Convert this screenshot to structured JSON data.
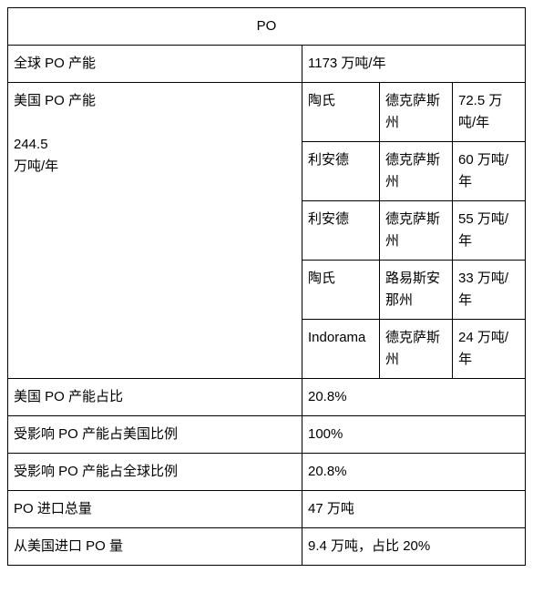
{
  "table": {
    "header": "PO",
    "row_global": {
      "label": "全球 PO 产能",
      "value": "1173 万吨/年"
    },
    "row_us": {
      "label_line1": "美国 PO 产能",
      "label_line2": "244.5",
      "label_line3": "万吨/年",
      "producers": [
        {
          "company": "陶氏",
          "state": "德克萨斯州",
          "capacity": "72.5 万吨/年"
        },
        {
          "company": "利安德",
          "state": "德克萨斯州",
          "capacity": "60 万吨/年"
        },
        {
          "company": "利安德",
          "state": "德克萨斯州",
          "capacity": "55 万吨/年"
        },
        {
          "company": "陶氏",
          "state": "路易斯安那州",
          "capacity": "33 万吨/年"
        },
        {
          "company": "Indorama",
          "state": "德克萨斯州",
          "capacity": "24 万吨/年"
        }
      ]
    },
    "row_us_share": {
      "label": "美国 PO 产能占比",
      "value": "20.8%"
    },
    "row_us_affected": {
      "label": "受影响 PO 产能占美国比例",
      "value": "100%"
    },
    "row_global_affected": {
      "label": "受影响 PO 产能占全球比例",
      "value": "20.8%"
    },
    "row_import_total": {
      "label": "PO 进口总量",
      "value": "47 万吨"
    },
    "row_import_us": {
      "label": "从美国进口 PO 量",
      "value": "9.4 万吨，占比 20%"
    }
  },
  "style": {
    "border_color": "#000000",
    "background_color": "#ffffff",
    "text_color": "#000000",
    "font_size_pt": 11
  }
}
